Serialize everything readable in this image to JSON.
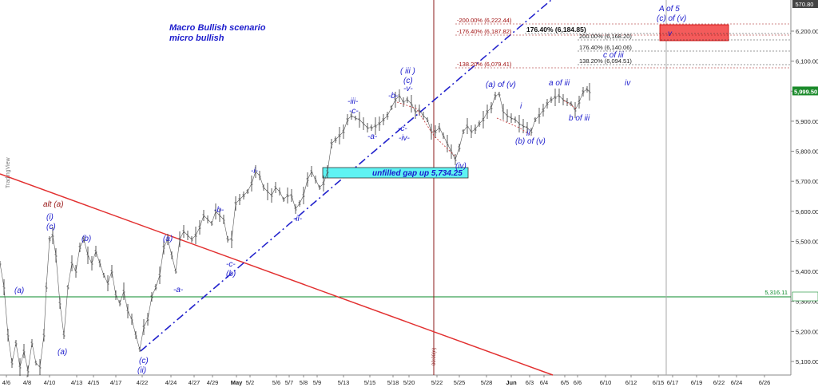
{
  "chart_data": {
    "type": "ohlc",
    "watermark": "TradingView",
    "price_axis": {
      "ticks": [
        "5,100.00",
        "5,200.00",
        "5,300.00",
        "5,400.00",
        "5,500.00",
        "5,600.00",
        "5,700.00",
        "5,800.00",
        "5,900.00",
        "6,000.00",
        "6,100.00",
        "6,200.00"
      ],
      "top_label": "570.80",
      "last_price": "5,999.50",
      "hline_label": "5,316.11"
    },
    "date_axis": {
      "ticks": [
        "4/6",
        "4/8",
        "4/10",
        "4/13",
        "4/15",
        "4/17",
        "4/22",
        "4/24",
        "4/27",
        "4/29",
        "May",
        "5/2",
        "5/6",
        "5/7",
        "5/8",
        "5/9",
        "5/13",
        "5/15",
        "5/18",
        "5/20",
        "5/22",
        "5/25",
        "5/28",
        "Jun",
        "6/3",
        "6/4",
        "6/5",
        "6/6",
        "6/10",
        "6/12",
        "6/15",
        "6/17",
        "6/19",
        "6/22",
        "6/24",
        "6/26"
      ]
    },
    "vline_label": "00:00(n)",
    "annotations": {
      "title1": "Macro Bullish scenario",
      "title2": "micro bullish",
      "gap": "unfilled gap up 5,734.25",
      "target1": "A of 5",
      "target2": "(c) of (v)",
      "target_v": "v",
      "alt": "alt (a)"
    },
    "fib_levels": [
      {
        "label": "-200.00% (6,222.44)",
        "color": "red"
      },
      {
        "label": "-176.40% (6,187.82)",
        "color": "red"
      },
      {
        "label": "176.40% (6,184.85)",
        "color": "black"
      },
      {
        "label": "200.00% (6,168.20)",
        "color": "black"
      },
      {
        "label": "176.40% (6,140.06)",
        "color": "black"
      },
      {
        "label": "138.20% (6,094.51)",
        "color": "black"
      },
      {
        "label": "-138.20% (6,079.41)",
        "color": "red"
      }
    ],
    "wave_labels": [
      "(a)",
      "(i)",
      "(c)",
      "(a)",
      "(b)",
      "(c)",
      "(ii)",
      "(a)",
      "-a-",
      "-c-",
      "(b)",
      "-b-",
      "-i-",
      "-ii-",
      "-iii-",
      "-c-",
      "-a-",
      "-b-",
      "-c-",
      "-iv-",
      "( iii )",
      "(c)",
      "-v-",
      "(iv)",
      "(a) of (v)",
      "i",
      "ii",
      "(b) of (v)",
      "a of iii",
      "b of iii",
      "c of iii",
      "iv"
    ]
  }
}
